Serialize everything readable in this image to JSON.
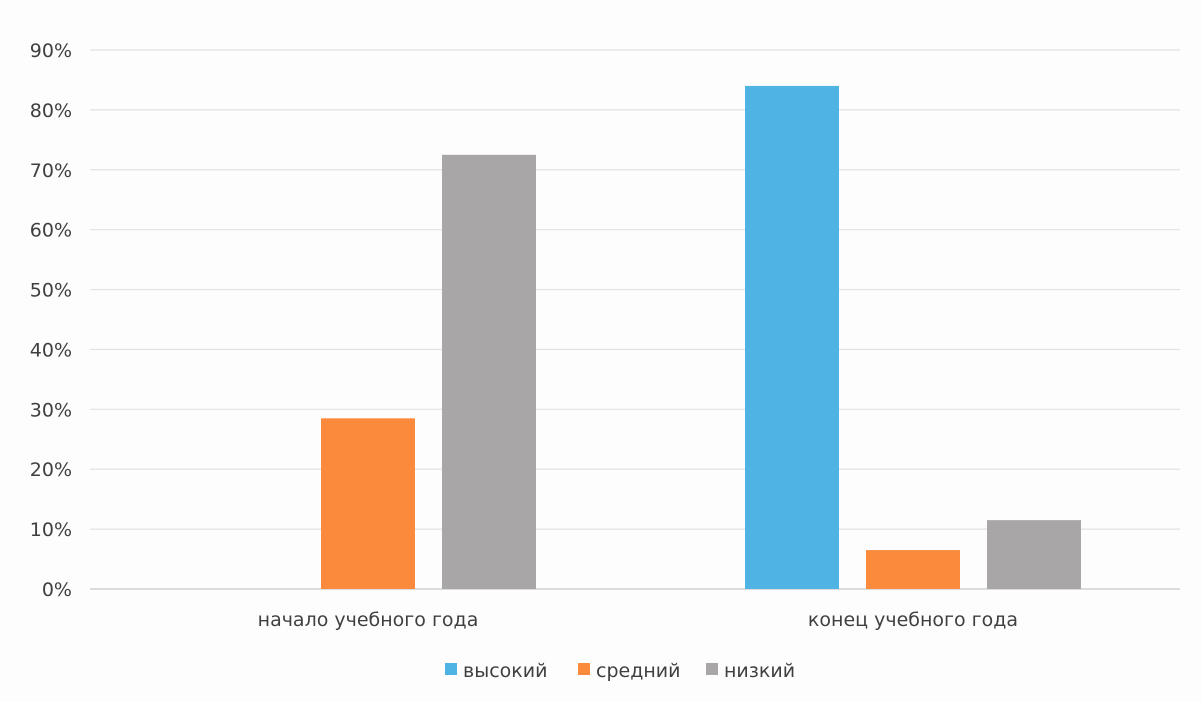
{
  "chart_data": {
    "type": "bar",
    "categories": [
      "начало учебного года",
      "конец учебного года"
    ],
    "series": [
      {
        "name": "высокий",
        "values": [
          0,
          84
        ],
        "color": "#4fb3e3"
      },
      {
        "name": "средний",
        "values": [
          28.5,
          6.5
        ],
        "color": "#fb8a3c"
      },
      {
        "name": "низкий",
        "values": [
          72.5,
          11.5
        ],
        "color": "#a8a6a6"
      }
    ],
    "y_ticks": [
      "0%",
      "10%",
      "20%",
      "30%",
      "40%",
      "50%",
      "60%",
      "70%",
      "80%",
      "90%"
    ],
    "ylim": [
      0,
      90
    ],
    "y_unit": "%",
    "grid": true,
    "legend_position": "bottom"
  }
}
